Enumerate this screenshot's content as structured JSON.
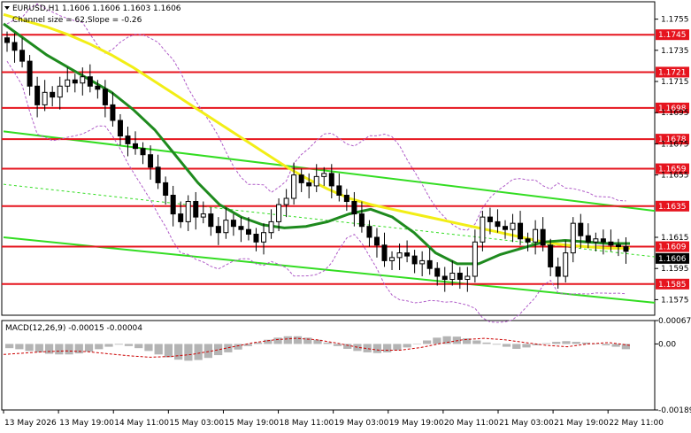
{
  "header": {
    "symbol_line": "EURUSD,H1  1.1606 1.1606 1.1603 1.1606",
    "channel_line": "Channel size = 62,Slope = -0.26"
  },
  "macd_label": "MACD(12,26,9) -0.00015 -0.00004",
  "colors": {
    "background": "#ffffff",
    "level_line": "#e6141e",
    "level_tag_bg": "#e6141e",
    "channel": "#33dd22",
    "ma_yellow": "#f2ee16",
    "ma_green": "#1e8a1e",
    "candle": "#000000",
    "bollinger": "#b05cc8",
    "macd_hist": "#b4b4b4",
    "macd_signal": "#cc0000",
    "grid": "#e0e0e0",
    "current_price_tag": "#000000"
  },
  "chart_data": [
    {
      "type": "candlestick",
      "title": "EURUSD,H1",
      "ylim": [
        1.1565,
        1.1765
      ],
      "y_ticks": [
        "1.1755",
        "1.1735",
        "1.1715",
        "1.1695",
        "1.1675",
        "1.1655",
        "1.1615",
        "1.1595",
        "1.1575"
      ],
      "x_ticks": [
        "13 May 2026",
        "13 May 19:00",
        "14 May 11:00",
        "15 May 03:00",
        "15 May 19:00",
        "18 May 11:00",
        "19 May 03:00",
        "19 May 19:00",
        "20 May 11:00",
        "21 May 03:00",
        "21 May 19:00",
        "22 May 11:00"
      ],
      "horizontal_levels": [
        1.1745,
        1.1721,
        1.1698,
        1.1678,
        1.1659,
        1.1635,
        1.1609,
        1.1585
      ],
      "level_labels": [
        "1.1745",
        "1.1721",
        "1.1698",
        "1.1678",
        "1.1659",
        "1.1635",
        "1.1609",
        "1.1585"
      ],
      "current_price": "1.1606",
      "close": [
        1.174,
        1.1735,
        1.1728,
        1.1712,
        1.17,
        1.1708,
        1.1705,
        1.1712,
        1.1716,
        1.1714,
        1.1718,
        1.1712,
        1.171,
        1.17,
        1.169,
        1.168,
        1.1675,
        1.1672,
        1.1668,
        1.166,
        1.165,
        1.1642,
        1.163,
        1.1625,
        1.1638,
        1.1628,
        1.163,
        1.1622,
        1.1618,
        1.1626,
        1.1622,
        1.162,
        1.1617,
        1.1612,
        1.1618,
        1.1625,
        1.1636,
        1.164,
        1.1655,
        1.165,
        1.1648,
        1.1654,
        1.1656,
        1.1648,
        1.1642,
        1.1638,
        1.163,
        1.1622,
        1.1615,
        1.161,
        1.16,
        1.1602,
        1.1605,
        1.1603,
        1.1598,
        1.16,
        1.1595,
        1.159,
        1.1588,
        1.1592,
        1.1588,
        1.159,
        1.1612,
        1.1628,
        1.1625,
        1.1622,
        1.162,
        1.1624,
        1.1614,
        1.1612,
        1.162,
        1.161,
        1.1596,
        1.159,
        1.1605,
        1.1624,
        1.1616,
        1.1612,
        1.1614,
        1.1612,
        1.161,
        1.1609,
        1.1606
      ],
      "ma_yellow": [
        1.1758,
        1.1754,
        1.175,
        1.1745,
        1.1739,
        1.1732,
        1.1724,
        1.1715,
        1.1706,
        1.1697,
        1.1688,
        1.1679,
        1.167,
        1.1661,
        1.1653,
        1.1646,
        1.164,
        1.1636,
        1.1633,
        1.163,
        1.1627,
        1.1624,
        1.1621,
        1.1618,
        1.1615,
        1.1612,
        1.161,
        1.1609,
        1.1608,
        1.1608
      ],
      "ma_green": [
        1.1752,
        1.1742,
        1.1732,
        1.1724,
        1.1716,
        1.1708,
        1.1697,
        1.1684,
        1.1667,
        1.165,
        1.1636,
        1.1628,
        1.1623,
        1.1621,
        1.1622,
        1.1625,
        1.163,
        1.1633,
        1.1628,
        1.1618,
        1.1605,
        1.1598,
        1.1598,
        1.1604,
        1.1608,
        1.1612,
        1.1613,
        1.1612,
        1.1611,
        1.1611
      ],
      "channel_upper": [
        1.1683,
        1.1632
      ],
      "channel_lower": [
        1.1615,
        1.1573
      ]
    },
    {
      "type": "bar",
      "title": "MACD(12,26,9) -0.00015 -0.00004",
      "ylim": [
        -0.00189,
        0.00067
      ],
      "y_ticks": [
        "0.00067",
        "0.00",
        "-0.00189"
      ],
      "histogram": [
        -0.00012,
        -0.00015,
        -0.0002,
        -0.00024,
        -0.00028,
        -0.0003,
        -0.0003,
        -0.00027,
        -0.00022,
        -0.00015,
        -8e-05,
        -2e-05,
        -6e-05,
        -0.00012,
        -0.0002,
        -0.0003,
        -0.00038,
        -0.00045,
        -0.00048,
        -0.00046,
        -0.0004,
        -0.00032,
        -0.00024,
        -0.00016,
        -6e-05,
        4e-05,
        0.00012,
        0.00018,
        0.00022,
        0.00022,
        0.00018,
        0.00012,
        4e-05,
        -6e-05,
        -0.00014,
        -0.0002,
        -0.00024,
        -0.00026,
        -0.00024,
        -0.00018,
        -0.0001,
        0.0,
        0.0001,
        0.00018,
        0.00022,
        0.00021,
        0.00016,
        0.0001,
        4e-05,
        -2e-05,
        -8e-05,
        -0.00014,
        -0.0001,
        -4e-05,
        2e-05,
        6e-05,
        8e-05,
        6e-05,
        4e-05,
        0.0,
        -4e-05,
        -8e-05,
        -0.00015
      ],
      "signal": [
        -0.0003,
        -0.00026,
        -0.00022,
        -0.0002,
        -0.00022,
        -0.00028,
        -0.00034,
        -0.00038,
        -0.00036,
        -0.0003,
        -0.0002,
        -8e-05,
        4e-05,
        0.00012,
        0.00016,
        0.00012,
        2e-05,
        -0.0001,
        -0.00018,
        -0.00018,
        -0.0001,
        2e-05,
        0.00012,
        0.00016,
        0.00012,
        4e-05,
        -4e-05,
        -8e-05,
        0.0,
        4e-05,
        -4e-05
      ]
    }
  ]
}
